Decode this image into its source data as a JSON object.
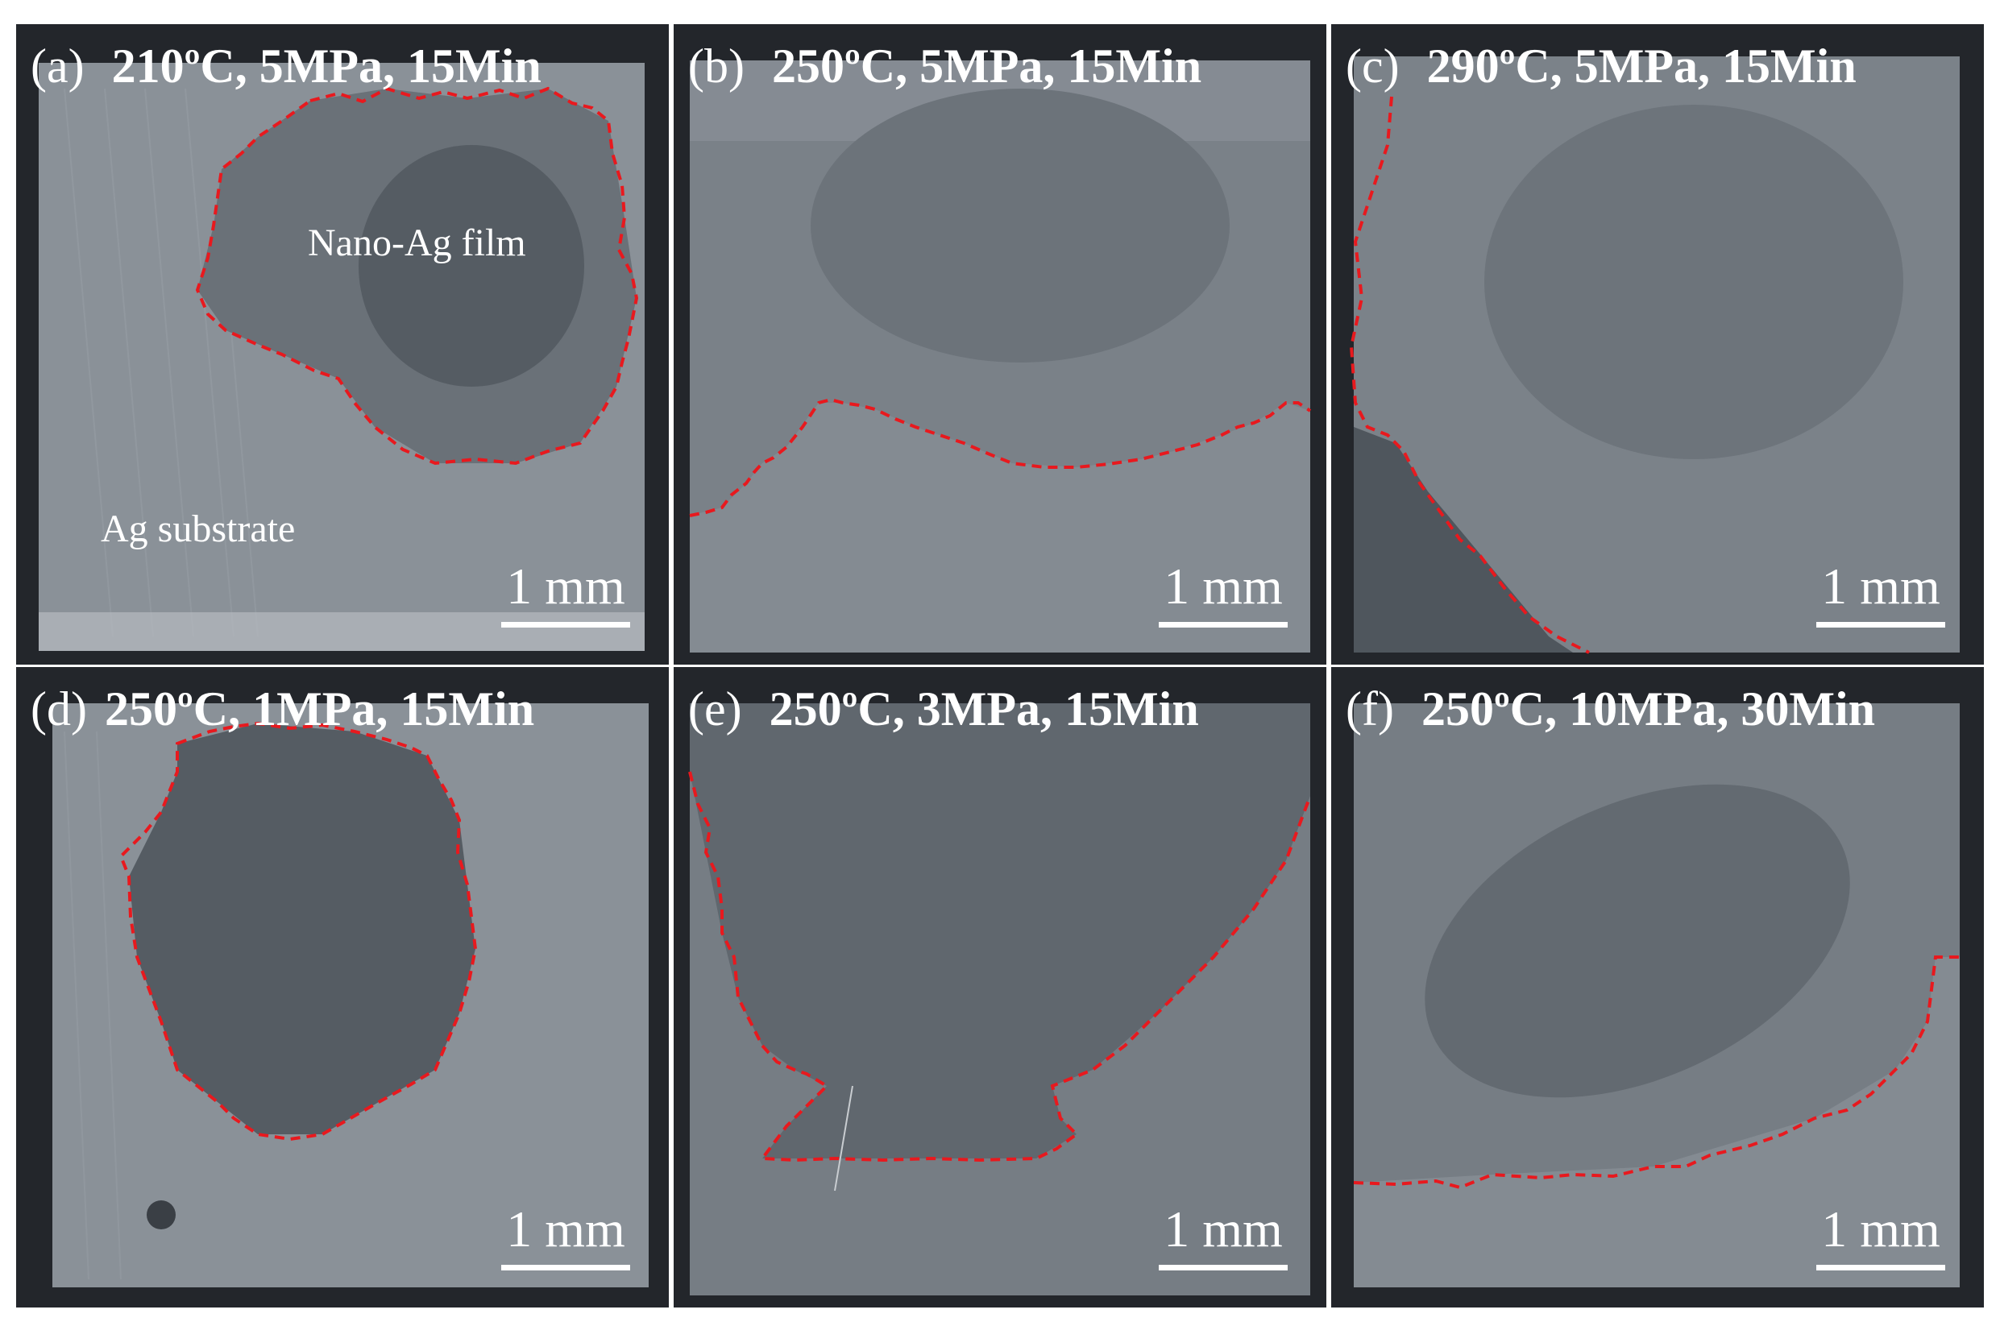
{
  "panels": [
    {
      "letter": "(a)",
      "temperature": "210ºC,",
      "pressure": "5MPa,",
      "time": "15Min",
      "scale": "1 mm"
    },
    {
      "letter": "(b)",
      "temperature": "250ºC,",
      "pressure": "5MPa,",
      "time": "15Min",
      "scale": "1 mm"
    },
    {
      "letter": "(c)",
      "temperature": "290ºC,",
      "pressure": "5MPa,",
      "time": "15Min",
      "scale": "1 mm"
    },
    {
      "letter": "(d)",
      "temperature": "250ºC,",
      "pressure": "1MPa,",
      "time": "15Min",
      "scale": "1 mm"
    },
    {
      "letter": "(e)",
      "temperature": "250ºC,",
      "pressure": "3MPa,",
      "time": "15Min",
      "scale": "1 mm"
    },
    {
      "letter": "(f)",
      "temperature": "250ºC,",
      "pressure": "10MPa,",
      "time": "30Min",
      "scale": "1 mm"
    }
  ],
  "annotations": {
    "film": "Nano-Ag film",
    "substrate": "Ag substrate"
  },
  "colors": {
    "boundary": "#e8191e",
    "background": "#26292f",
    "substrate": "#7d848c",
    "film": "#5e656d"
  }
}
